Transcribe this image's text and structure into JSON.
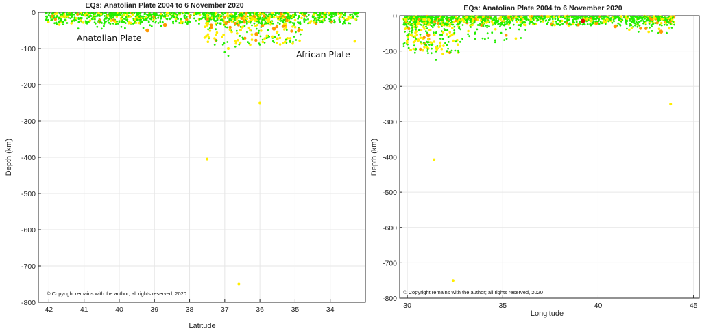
{
  "chart_data": [
    {
      "type": "scatter",
      "title": "EQs: Anatolian Plate   2004 to 6 November 2020",
      "xlabel": "Latitude",
      "ylabel": "Depth (km)",
      "x_reversed": true,
      "xlim": [
        33,
        42.3
      ],
      "ylim": [
        -800,
        0
      ],
      "xticks": [
        42,
        41,
        40,
        39,
        38,
        37,
        36,
        35,
        34
      ],
      "yticks": [
        0,
        -100,
        -200,
        -300,
        -400,
        -500,
        -600,
        -700,
        -800
      ],
      "grid": true,
      "annotations": [
        {
          "text": "Anatolian Plate",
          "x": 40.8,
          "y": -70
        },
        {
          "text": "African Plate",
          "x": 35.0,
          "y": -115
        }
      ],
      "copyright": "© Copyright remains with the author; all rights reserved, 2020",
      "colors": {
        "small": "#22ee00",
        "medium": "#ffee00",
        "large": "#ff9900",
        "major": "#dd1100"
      },
      "points": [
        [
          36.0,
          -250,
          "medium"
        ],
        [
          37.5,
          -405,
          "medium"
        ],
        [
          36.6,
          -750,
          "medium"
        ],
        [
          39.2,
          -50,
          "large"
        ],
        [
          38.7,
          -35,
          "large"
        ],
        [
          36.1,
          -60,
          "large"
        ],
        [
          35.6,
          -45,
          "large"
        ],
        [
          33.3,
          -80,
          "medium"
        ],
        [
          36.9,
          -100,
          "medium"
        ],
        [
          35.8,
          -65,
          "medium"
        ],
        [
          40.5,
          -45,
          "small"
        ],
        [
          36.9,
          -120,
          "small"
        ],
        [
          37.0,
          -110,
          "small"
        ],
        [
          36.7,
          -95,
          "small"
        ]
      ],
      "clusters": [
        {
          "xmin": 33.2,
          "xmax": 42.1,
          "ymin": -32,
          "ymax": -2,
          "n": 900,
          "small": 0.8,
          "medium": 0.17,
          "large": 0.03
        },
        {
          "xmin": 34.8,
          "xmax": 37.6,
          "ymin": -90,
          "ymax": -10,
          "n": 280,
          "small": 0.55,
          "medium": 0.38,
          "large": 0.07
        },
        {
          "xmin": 38.4,
          "xmax": 41.8,
          "ymin": -45,
          "ymax": -5,
          "n": 60,
          "small": 0.85,
          "medium": 0.12,
          "large": 0.03
        }
      ]
    },
    {
      "type": "scatter",
      "title": "EQs: Anatolian Plate   2004 to 6 November 2020",
      "xlabel": "Longitude",
      "ylabel": "Depth (km)",
      "x_reversed": false,
      "xlim": [
        29.6,
        45.3
      ],
      "ylim": [
        -800,
        0
      ],
      "xticks": [
        30,
        35,
        40,
        45
      ],
      "yticks": [
        0,
        -100,
        -200,
        -300,
        -400,
        -500,
        -600,
        -700,
        -800
      ],
      "grid": true,
      "annotations": [],
      "copyright": "© Copyright remains with the author; all rights reserved, 2020",
      "colors": {
        "small": "#22ee00",
        "medium": "#ffee00",
        "large": "#ff9900",
        "major": "#dd1100"
      },
      "points": [
        [
          43.8,
          -250,
          "medium"
        ],
        [
          31.4,
          -408,
          "medium"
        ],
        [
          32.4,
          -750,
          "medium"
        ],
        [
          39.2,
          -15,
          "major"
        ],
        [
          31.1,
          -55,
          "large"
        ],
        [
          43.3,
          -45,
          "large"
        ],
        [
          40.9,
          -30,
          "large"
        ],
        [
          31.5,
          -125,
          "small"
        ],
        [
          34.6,
          -75,
          "small"
        ],
        [
          30.4,
          -105,
          "small"
        ],
        [
          36.2,
          -40,
          "small"
        ]
      ],
      "clusters": [
        {
          "xmin": 29.8,
          "xmax": 44.0,
          "ymin": -28,
          "ymax": -2,
          "n": 950,
          "small": 0.82,
          "medium": 0.15,
          "large": 0.03
        },
        {
          "xmin": 29.8,
          "xmax": 32.8,
          "ymin": -110,
          "ymax": -10,
          "n": 260,
          "small": 0.55,
          "medium": 0.38,
          "large": 0.07
        },
        {
          "xmin": 32.8,
          "xmax": 36.0,
          "ymin": -70,
          "ymax": -10,
          "n": 50,
          "small": 0.8,
          "medium": 0.17,
          "large": 0.03
        },
        {
          "xmin": 41.5,
          "xmax": 44.0,
          "ymin": -50,
          "ymax": -5,
          "n": 50,
          "small": 0.75,
          "medium": 0.2,
          "large": 0.05
        }
      ]
    }
  ]
}
